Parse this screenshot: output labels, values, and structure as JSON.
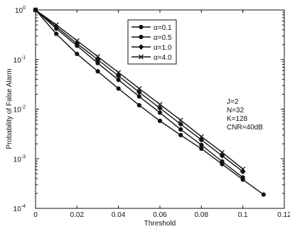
{
  "chart_data": {
    "type": "line",
    "title": "",
    "xlabel": "Threshold",
    "ylabel": "Probability of False Alarm",
    "xlim": [
      0,
      0.12
    ],
    "ylim": [
      0.0001,
      1
    ],
    "yscale": "log",
    "grid": false,
    "legend_position": "top-center",
    "x_ticks": [
      "0",
      "0.02",
      "0.04",
      "0.06",
      "0.08",
      "0.1",
      "0.12"
    ],
    "x_tick_values": [
      0,
      0.02,
      0.04,
      0.06,
      0.08,
      0.1,
      0.12
    ],
    "y_tick_values": [
      1,
      0.1,
      0.01,
      0.001,
      0.0001
    ],
    "y_tick_bases": [
      "10",
      "10",
      "10",
      "10",
      "10"
    ],
    "y_tick_exps": [
      "0",
      "-1",
      "-2",
      "-3",
      "-4"
    ],
    "x": [
      0,
      0.01,
      0.02,
      0.03,
      0.04,
      0.05,
      0.06,
      0.07,
      0.08,
      0.09,
      0.1,
      0.11
    ],
    "series": [
      {
        "name": "α=0.1",
        "marker": "circle",
        "x": [
          0,
          0.01,
          0.02,
          0.03,
          0.04,
          0.05,
          0.06,
          0.07,
          0.08,
          0.09,
          0.1,
          0.11
        ],
        "values": [
          1,
          0.33,
          0.13,
          0.058,
          0.026,
          0.012,
          0.0058,
          0.003,
          0.0016,
          0.00078,
          0.00038,
          0.00019
        ]
      },
      {
        "name": "α=0.5",
        "marker": "circle",
        "x": [
          0,
          0.01,
          0.02,
          0.03,
          0.04,
          0.05,
          0.06,
          0.07,
          0.08,
          0.09,
          0.1
        ],
        "values": [
          1,
          0.42,
          0.19,
          0.085,
          0.039,
          0.018,
          0.0085,
          0.0039,
          0.0019,
          0.00088,
          0.00042
        ]
      },
      {
        "name": "α=1.0",
        "marker": "diamond",
        "x": [
          0,
          0.01,
          0.02,
          0.03,
          0.04,
          0.05,
          0.06,
          0.07,
          0.08,
          0.09,
          0.1
        ],
        "values": [
          1,
          0.46,
          0.21,
          0.1,
          0.047,
          0.022,
          0.0105,
          0.005,
          0.0024,
          0.00115,
          0.00055
        ]
      },
      {
        "name": "α=4.0",
        "marker": "x",
        "x": [
          0,
          0.01,
          0.02,
          0.03,
          0.04,
          0.05,
          0.06,
          0.07,
          0.08,
          0.09,
          0.1
        ],
        "values": [
          1,
          0.5,
          0.24,
          0.115,
          0.055,
          0.026,
          0.0125,
          0.006,
          0.0028,
          0.00135,
          0.00062
        ]
      }
    ],
    "annotations": [
      "J=2",
      "N=32",
      "K=128",
      "CNR=40dB"
    ]
  }
}
